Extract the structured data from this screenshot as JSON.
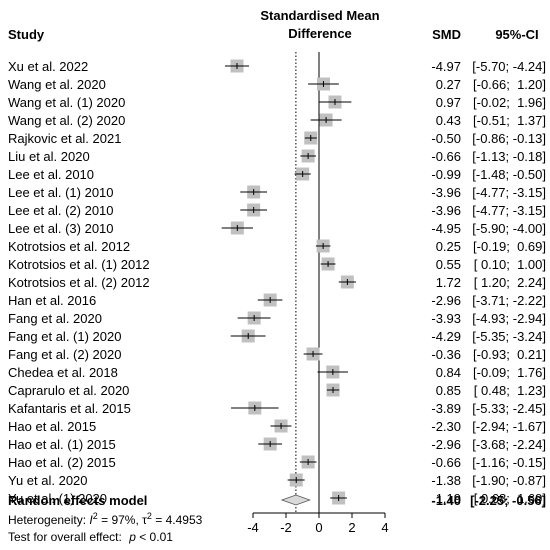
{
  "chart_data": {
    "type": "forest",
    "header": {
      "study": "Study",
      "effect_line1": "Standardised Mean",
      "effect_line2": "Difference",
      "smd": "SMD",
      "ci": "95%-CI"
    },
    "studies": [
      {
        "study": "Xu et al. 2022",
        "smd": -4.97,
        "lower": -5.7,
        "upper": -4.24,
        "smd_text": "-4.97",
        "ci_text": "[-5.70; -4.24]"
      },
      {
        "study": "Wang et al. 2020",
        "smd": 0.27,
        "lower": -0.66,
        "upper": 1.2,
        "smd_text": "0.27",
        "ci_text": "[-0.66;  1.20]"
      },
      {
        "study": "Wang et al. (1) 2020",
        "smd": 0.97,
        "lower": -0.02,
        "upper": 1.96,
        "smd_text": "0.97",
        "ci_text": "[-0.02;  1.96]"
      },
      {
        "study": "Wang et al. (2) 2020",
        "smd": 0.43,
        "lower": -0.51,
        "upper": 1.37,
        "smd_text": "0.43",
        "ci_text": "[-0.51;  1.37]"
      },
      {
        "study": "Rajkovic et al. 2021",
        "smd": -0.5,
        "lower": -0.86,
        "upper": -0.13,
        "smd_text": "-0.50",
        "ci_text": "[-0.86; -0.13]"
      },
      {
        "study": "Liu et al. 2020",
        "smd": -0.66,
        "lower": -1.13,
        "upper": -0.18,
        "smd_text": "-0.66",
        "ci_text": "[-1.13; -0.18]"
      },
      {
        "study": "Lee et al. 2010",
        "smd": -0.99,
        "lower": -1.48,
        "upper": -0.5,
        "smd_text": "-0.99",
        "ci_text": "[-1.48; -0.50]"
      },
      {
        "study": "Lee et al. (1) 2010",
        "smd": -3.96,
        "lower": -4.77,
        "upper": -3.15,
        "smd_text": "-3.96",
        "ci_text": "[-4.77; -3.15]"
      },
      {
        "study": "Lee et al. (2) 2010",
        "smd": -3.96,
        "lower": -4.77,
        "upper": -3.15,
        "smd_text": "-3.96",
        "ci_text": "[-4.77; -3.15]"
      },
      {
        "study": "Lee et al. (3) 2010",
        "smd": -4.95,
        "lower": -5.9,
        "upper": -4.0,
        "smd_text": "-4.95",
        "ci_text": "[-5.90; -4.00]"
      },
      {
        "study": "Kotrotsios et al. 2012",
        "smd": 0.25,
        "lower": -0.19,
        "upper": 0.69,
        "smd_text": "0.25",
        "ci_text": "[-0.19;  0.69]"
      },
      {
        "study": "Kotrotsios et al. (1) 2012",
        "smd": 0.55,
        "lower": 0.1,
        "upper": 1.0,
        "smd_text": "0.55",
        "ci_text": "[ 0.10;  1.00]"
      },
      {
        "study": "Kotrotsios et al. (2) 2012",
        "smd": 1.72,
        "lower": 1.2,
        "upper": 2.24,
        "smd_text": "1.72",
        "ci_text": "[ 1.20;  2.24]"
      },
      {
        "study": "Han et al. 2016",
        "smd": -2.96,
        "lower": -3.71,
        "upper": -2.22,
        "smd_text": "-2.96",
        "ci_text": "[-3.71; -2.22]"
      },
      {
        "study": "Fang et al. 2020",
        "smd": -3.93,
        "lower": -4.93,
        "upper": -2.94,
        "smd_text": "-3.93",
        "ci_text": "[-4.93; -2.94]"
      },
      {
        "study": "Fang et al. (1) 2020",
        "smd": -4.29,
        "lower": -5.35,
        "upper": -3.24,
        "smd_text": "-4.29",
        "ci_text": "[-5.35; -3.24]"
      },
      {
        "study": "Fang et al. (2) 2020",
        "smd": -0.36,
        "lower": -0.93,
        "upper": 0.21,
        "smd_text": "-0.36",
        "ci_text": "[-0.93;  0.21]"
      },
      {
        "study": "Chedea et al. 2018",
        "smd": 0.84,
        "lower": -0.09,
        "upper": 1.76,
        "smd_text": "0.84",
        "ci_text": "[-0.09;  1.76]"
      },
      {
        "study": "Caprarulo et al. 2020",
        "smd": 0.85,
        "lower": 0.48,
        "upper": 1.23,
        "smd_text": "0.85",
        "ci_text": "[ 0.48;  1.23]"
      },
      {
        "study": "Kafantaris et al. 2015",
        "smd": -3.89,
        "lower": -5.33,
        "upper": -2.45,
        "smd_text": "-3.89",
        "ci_text": "[-5.33; -2.45]"
      },
      {
        "study": "Hao et al. 2015",
        "smd": -2.3,
        "lower": -2.94,
        "upper": -1.67,
        "smd_text": "-2.30",
        "ci_text": "[-2.94; -1.67]"
      },
      {
        "study": "Hao et al. (1) 2015",
        "smd": -2.96,
        "lower": -3.68,
        "upper": -2.24,
        "smd_text": "-2.96",
        "ci_text": "[-3.68; -2.24]"
      },
      {
        "study": "Hao et al. (2) 2015",
        "smd": -0.66,
        "lower": -1.16,
        "upper": -0.15,
        "smd_text": "-0.66",
        "ci_text": "[-1.16; -0.15]"
      },
      {
        "study": "Yu et al. 2020",
        "smd": -1.38,
        "lower": -1.9,
        "upper": -0.87,
        "smd_text": "-1.38",
        "ci_text": "[-1.90; -0.87]"
      },
      {
        "study": "Yu et al. (1) 2020",
        "smd": 1.19,
        "lower": 0.68,
        "upper": 1.69,
        "smd_text": "1.19",
        "ci_text": "[ 0.68;  1.69]"
      }
    ],
    "pooled": {
      "label": "Random effects model",
      "smd": -1.4,
      "lower": -2.25,
      "upper": -0.56,
      "smd_text": "-1.40",
      "ci_text": "[-2.25; -0.56]"
    },
    "heterogeneity": {
      "label": "Heterogeneity:",
      "i2_symbol": "I",
      "i2_value": "97%",
      "tau2_symbol": "τ",
      "tau2_value": "4.4953"
    },
    "overall_effect": {
      "label": "Test for overall effect:",
      "p_symbol": "p",
      "p_value": "< 0.01"
    },
    "x_ticks": [
      -4,
      -2,
      0,
      2,
      4
    ],
    "x_tick_labels": [
      "-4",
      "-2",
      "0",
      "2",
      "4"
    ],
    "xlim": [
      -5.9,
      4.0
    ],
    "reference_line": 0,
    "colors": {
      "square": "#c0c0c0",
      "line": "#000000",
      "diamond": "#d9d9d9"
    }
  }
}
